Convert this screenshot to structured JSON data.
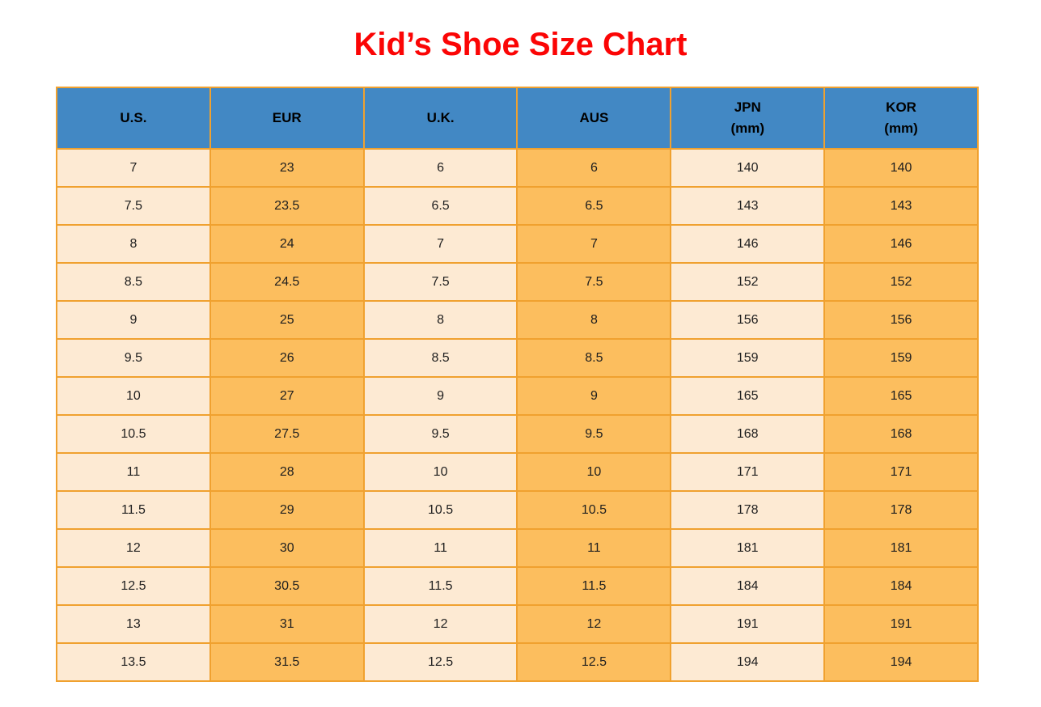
{
  "title": "Kid’s Shoe Size Chart",
  "colors": {
    "title_red": "#fb0505",
    "header_blue": "#4288c4",
    "col_cream": "#fdead3",
    "col_orange": "#fcbe5e",
    "border_orange": "#f0a12f",
    "text_dark": "#1f1f1f"
  },
  "chart_data": {
    "type": "table",
    "title": "Kid’s Shoe Size Chart",
    "columns": [
      "U.S.",
      "EUR",
      "U.K.",
      "AUS",
      "JPN (mm)",
      "KOR (mm)"
    ],
    "header_lines": [
      [
        "U.S."
      ],
      [
        "EUR"
      ],
      [
        "U.K."
      ],
      [
        "AUS"
      ],
      [
        "JPN",
        "(mm)"
      ],
      [
        "KOR",
        "(mm)"
      ]
    ],
    "rows": [
      [
        7,
        23,
        6,
        6,
        140,
        140
      ],
      [
        7.5,
        23.5,
        6.5,
        6.5,
        143,
        143
      ],
      [
        8,
        24,
        7,
        7,
        146,
        146
      ],
      [
        8.5,
        24.5,
        7.5,
        7.5,
        152,
        152
      ],
      [
        9,
        25,
        8,
        8,
        156,
        156
      ],
      [
        9.5,
        26,
        8.5,
        8.5,
        159,
        159
      ],
      [
        10,
        27,
        9,
        9,
        165,
        165
      ],
      [
        10.5,
        27.5,
        9.5,
        9.5,
        168,
        168
      ],
      [
        11,
        28,
        10,
        10,
        171,
        171
      ],
      [
        11.5,
        29,
        10.5,
        10.5,
        178,
        178
      ],
      [
        12,
        30,
        11,
        11,
        181,
        181
      ],
      [
        12.5,
        30.5,
        11.5,
        11.5,
        184,
        184
      ],
      [
        13,
        31,
        12,
        12,
        191,
        191
      ],
      [
        13.5,
        31.5,
        12.5,
        12.5,
        194,
        194
      ]
    ],
    "layout": {
      "column_fill_pattern": [
        "cream",
        "orange",
        "cream",
        "orange",
        "cream",
        "orange"
      ],
      "grid": true
    }
  }
}
